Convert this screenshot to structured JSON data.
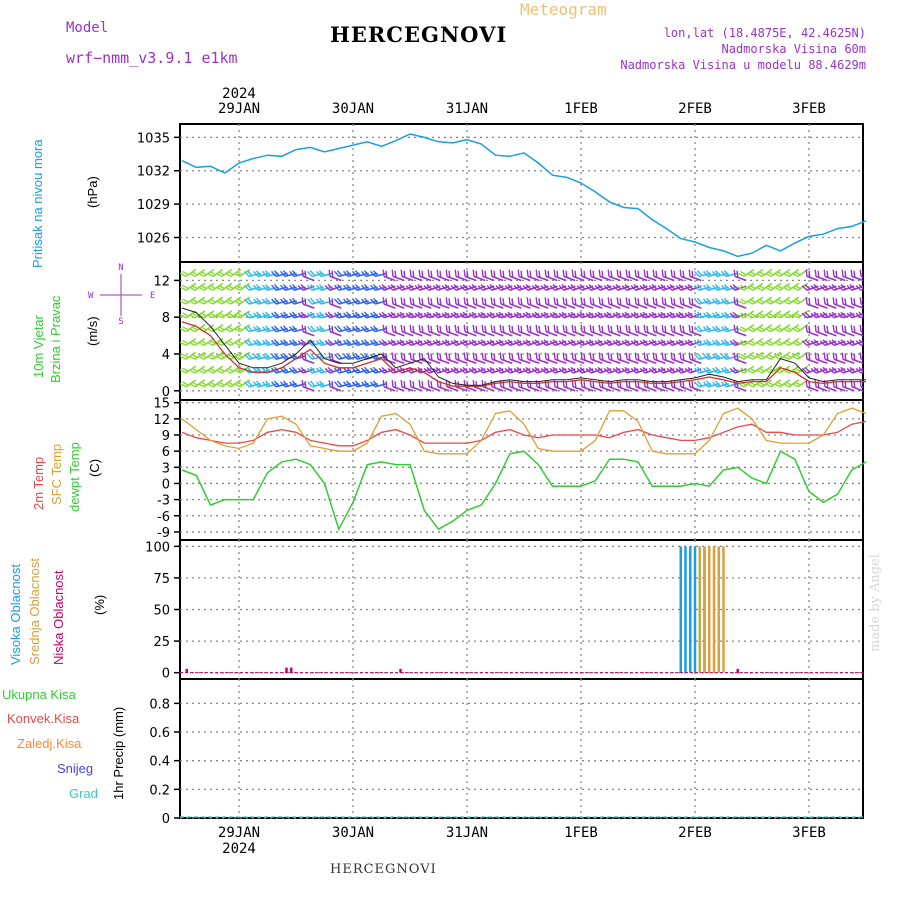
{
  "header": {
    "title": "HERCEGNOVI",
    "model_label": "Model",
    "model_value": "wrf−nmm_v3.9.1  e1km",
    "meteogram": "Meteogram",
    "lonlat": "lon,lat (18.4875E, 42.4625N)",
    "altitude": "Nadmorska Visina 60m",
    "model_altitude": "Nadmorska Visina u modelu 88.4629m"
  },
  "footer": "HERCEGNOVI",
  "credit": "made by Angel",
  "x_axis": {
    "year": "2024",
    "days": [
      "29JAN",
      "30JAN",
      "31JAN",
      "1FEB",
      "2FEB",
      "3FEB"
    ]
  },
  "compass": {
    "n": "N",
    "s": "S",
    "e": "E",
    "w": "W"
  },
  "colors": {
    "pressure": "#1a9fe0",
    "wind_speed": "#cc3333",
    "wind_gust": "#222222",
    "temp_2m": "#e84a4a",
    "temp_sfc": "#e0a030",
    "dewpoint": "#33cc33",
    "cloud_high": "#1a9fe0",
    "cloud_mid": "#d9a040",
    "cloud_low": "#cc0066",
    "precip_total": "#33cc33",
    "precip_conv": "#e84a4a",
    "precip_frozen": "#ff8833",
    "snow": "#4444dd",
    "graupel": "#33cccc"
  },
  "chart_data": [
    {
      "type": "line",
      "title": "",
      "ylabel": "Pritisak na nivou mora",
      "yunit": "(hPa)",
      "yticks": [
        1026,
        1029,
        1032,
        1035
      ],
      "ylim": [
        1023.8,
        1036.2
      ],
      "grid": true,
      "x": [
        "28JAN 12",
        "28JAN 15",
        "28JAN 18",
        "28JAN 21",
        "29JAN 00",
        "29JAN 03",
        "29JAN 06",
        "29JAN 09",
        "29JAN 12",
        "29JAN 15",
        "29JAN 18",
        "29JAN 21",
        "30JAN 00",
        "30JAN 03",
        "30JAN 06",
        "30JAN 09",
        "30JAN 12",
        "30JAN 15",
        "30JAN 18",
        "30JAN 21",
        "31JAN 00",
        "31JAN 03",
        "31JAN 06",
        "31JAN 09",
        "31JAN 12",
        "31JAN 15",
        "31JAN 18",
        "31JAN 21",
        "1FEB 00",
        "1FEB 03",
        "1FEB 06",
        "1FEB 09",
        "1FEB 12",
        "1FEB 15",
        "1FEB 18",
        "1FEB 21",
        "2FEB 00",
        "2FEB 03",
        "2FEB 06",
        "2FEB 09",
        "2FEB 12",
        "2FEB 15",
        "2FEB 18",
        "2FEB 21",
        "3FEB 00",
        "3FEB 03",
        "3FEB 06",
        "3FEB 09",
        "3FEB 12"
      ],
      "series": [
        {
          "name": "",
          "values": [
            1032.9,
            1032.3,
            1032.4,
            1031.8,
            1032.7,
            1033.1,
            1033.4,
            1033.3,
            1033.9,
            1034.1,
            1033.7,
            1034.0,
            1034.3,
            1034.6,
            1034.2,
            1034.7,
            1035.3,
            1035.0,
            1034.6,
            1034.5,
            1034.8,
            1034.4,
            1033.4,
            1033.3,
            1033.6,
            1032.7,
            1031.6,
            1031.4,
            1030.9,
            1030.1,
            1029.2,
            1028.7,
            1028.6,
            1027.6,
            1026.8,
            1025.9,
            1025.6,
            1025.1,
            1024.8,
            1024.3,
            1024.6,
            1025.3,
            1024.8,
            1025.5,
            1026.1,
            1026.3,
            1026.8,
            1027.0,
            1027.5
          ]
        }
      ]
    },
    {
      "type": "line",
      "title": "",
      "ylabel": "10m Vjetar Brzina i Pravac",
      "yunit": "(m/s)",
      "yticks": [
        0,
        4,
        8,
        12
      ],
      "ylim": [
        -1,
        14
      ],
      "grid": true,
      "x": [
        "28JAN 12",
        "28JAN 15",
        "28JAN 18",
        "28JAN 21",
        "29JAN 00",
        "29JAN 03",
        "29JAN 06",
        "29JAN 09",
        "29JAN 12",
        "29JAN 15",
        "29JAN 18",
        "29JAN 21",
        "30JAN 00",
        "30JAN 03",
        "30JAN 06",
        "30JAN 09",
        "30JAN 12",
        "30JAN 15",
        "30JAN 18",
        "30JAN 21",
        "31JAN 00",
        "31JAN 03",
        "31JAN 06",
        "31JAN 09",
        "31JAN 12",
        "31JAN 15",
        "31JAN 18",
        "31JAN 21",
        "1FEB 00",
        "1FEB 03",
        "1FEB 06",
        "1FEB 09",
        "1FEB 12",
        "1FEB 15",
        "1FEB 18",
        "1FEB 21",
        "2FEB 00",
        "2FEB 03",
        "2FEB 06",
        "2FEB 09",
        "2FEB 12",
        "2FEB 15",
        "2FEB 18",
        "2FEB 21",
        "3FEB 00",
        "3FEB 03",
        "3FEB 06",
        "3FEB 09",
        "3FEB 12"
      ],
      "series": [
        {
          "name": "",
          "values": [
            7.5,
            7.0,
            6.0,
            4.0,
            2.5,
            2.0,
            2.0,
            2.5,
            3.5,
            4.5,
            3.0,
            2.5,
            2.5,
            3.0,
            3.5,
            2.0,
            2.5,
            2.0,
            1.0,
            0.5,
            0.5,
            0.5,
            0.8,
            1.0,
            0.8,
            0.8,
            1.0,
            1.0,
            1.2,
            1.0,
            0.8,
            1.0,
            1.0,
            0.8,
            0.8,
            1.0,
            1.2,
            1.5,
            1.2,
            0.8,
            1.0,
            1.0,
            2.5,
            2.0,
            1.0,
            0.8,
            1.0,
            1.0,
            1.0
          ]
        },
        {
          "name": "",
          "values": [
            9.0,
            8.5,
            7.0,
            5.0,
            3.0,
            2.5,
            2.5,
            3.0,
            4.0,
            5.5,
            3.5,
            3.0,
            3.0,
            3.5,
            4.0,
            2.5,
            3.0,
            3.5,
            1.5,
            0.8,
            0.6,
            0.6,
            1.0,
            1.2,
            1.0,
            1.0,
            1.2,
            1.2,
            1.4,
            1.2,
            1.0,
            1.2,
            1.2,
            1.0,
            1.0,
            1.2,
            1.4,
            1.8,
            1.5,
            1.0,
            1.2,
            1.2,
            3.5,
            3.0,
            1.4,
            1.0,
            1.2,
            1.2,
            1.2
          ]
        }
      ]
    },
    {
      "type": "line",
      "title": "",
      "ylabel": "2m Temp / SFC Temp / dewpt Temp",
      "yunit": "(C)",
      "yticks": [
        -9,
        -6,
        -3,
        0,
        3,
        6,
        9,
        12,
        15
      ],
      "ylim": [
        -10.5,
        15.5
      ],
      "grid": true,
      "x": [
        "28JAN 12",
        "28JAN 15",
        "28JAN 18",
        "28JAN 21",
        "29JAN 00",
        "29JAN 03",
        "29JAN 06",
        "29JAN 09",
        "29JAN 12",
        "29JAN 15",
        "29JAN 18",
        "29JAN 21",
        "30JAN 00",
        "30JAN 03",
        "30JAN 06",
        "30JAN 09",
        "30JAN 12",
        "30JAN 15",
        "30JAN 18",
        "30JAN 21",
        "31JAN 00",
        "31JAN 03",
        "31JAN 06",
        "31JAN 09",
        "31JAN 12",
        "31JAN 15",
        "31JAN 18",
        "31JAN 21",
        "1FEB 00",
        "1FEB 03",
        "1FEB 06",
        "1FEB 09",
        "1FEB 12",
        "1FEB 15",
        "1FEB 18",
        "1FEB 21",
        "2FEB 00",
        "2FEB 03",
        "2FEB 06",
        "2FEB 09",
        "2FEB 12",
        "2FEB 15",
        "2FEB 18",
        "2FEB 21",
        "3FEB 00",
        "3FEB 03",
        "3FEB 06",
        "3FEB 09",
        "3FEB 12"
      ],
      "series": [
        {
          "name": "2m Temp",
          "values": [
            9.5,
            8.5,
            8.0,
            7.5,
            7.5,
            8.0,
            9.5,
            10.0,
            9.5,
            8.0,
            7.5,
            7.0,
            7.0,
            8.0,
            9.5,
            10.0,
            9.0,
            7.5,
            7.5,
            7.5,
            7.5,
            8.0,
            9.5,
            10.0,
            9.0,
            8.5,
            9.0,
            9.0,
            9.0,
            9.0,
            8.5,
            9.5,
            10.0,
            9.0,
            8.5,
            8.0,
            8.0,
            8.5,
            9.5,
            10.5,
            11.0,
            9.5,
            9.5,
            9.0,
            9.0,
            9.0,
            9.5,
            11.0,
            11.5
          ]
        },
        {
          "name": "SFC Temp",
          "values": [
            12.0,
            10.0,
            8.0,
            7.0,
            6.5,
            7.5,
            12.0,
            12.5,
            11.0,
            7.0,
            6.5,
            6.0,
            6.0,
            7.5,
            12.5,
            13.0,
            11.0,
            6.0,
            5.5,
            5.5,
            5.5,
            8.0,
            13.0,
            13.5,
            11.0,
            6.5,
            6.0,
            6.0,
            6.0,
            8.0,
            13.5,
            13.5,
            11.5,
            6.0,
            5.5,
            5.5,
            5.5,
            8.0,
            13.0,
            14.0,
            12.0,
            8.0,
            7.5,
            7.5,
            7.5,
            9.0,
            13.0,
            14.0,
            13.0
          ]
        },
        {
          "name": "dewpt Temp",
          "values": [
            2.5,
            1.5,
            -4.0,
            -3.0,
            -3.0,
            -3.0,
            2.0,
            4.0,
            4.5,
            3.5,
            0.0,
            -8.5,
            -3.5,
            3.5,
            4.0,
            3.5,
            3.5,
            -5.0,
            -8.5,
            -7.0,
            -5.0,
            -4.0,
            0.0,
            5.5,
            6.0,
            3.5,
            -0.5,
            -0.5,
            -0.5,
            0.5,
            4.5,
            4.5,
            4.0,
            -0.5,
            -0.5,
            -0.5,
            0.0,
            -0.5,
            2.5,
            3.0,
            1.0,
            0.0,
            6.0,
            4.5,
            -1.5,
            -3.5,
            -2.0,
            2.5,
            4.0
          ]
        }
      ]
    },
    {
      "type": "bar",
      "title": "",
      "ylabel": "Visoka Oblacnost / Srednja Oblacnost / Niska Oblacnost",
      "yunit": "(%)",
      "yticks": [
        0,
        25,
        50,
        75,
        100
      ],
      "ylim": [
        -5,
        105
      ],
      "grid": true,
      "series": [
        {
          "name": "Visoka Oblacnost",
          "x": [
            "1FEB 21",
            "1FEB 22",
            "1FEB 23",
            "2FEB 00",
            "2FEB 01",
            "2FEB 02"
          ],
          "values": [
            100,
            100,
            100,
            100,
            100,
            100
          ]
        },
        {
          "name": "Srednja Oblacnost",
          "x": [
            "2FEB 01",
            "2FEB 02",
            "2FEB 03",
            "2FEB 04",
            "2FEB 05",
            "2FEB 06"
          ],
          "values": [
            100,
            100,
            100,
            100,
            100,
            100
          ]
        },
        {
          "name": "Niska Oblacnost",
          "x": [
            "28JAN 13",
            "29JAN 10",
            "29JAN 11",
            "30JAN 10",
            "2FEB 09"
          ],
          "values": [
            3,
            4,
            4,
            3,
            3
          ]
        }
      ]
    },
    {
      "type": "bar",
      "title": "",
      "ylabel": "1hr Precip",
      "yunit": "(mm)",
      "yticks": [
        0,
        0.2,
        0.4,
        0.6,
        0.8
      ],
      "ylim": [
        0,
        0.97
      ],
      "grid": true,
      "legend": [
        "Ukupna Kisa",
        "Konvek.Kisa",
        "Zaledj.Kisa",
        "Snijeg",
        "Grad"
      ],
      "series": [
        {
          "name": "Ukupna Kisa",
          "values": [
            0
          ]
        },
        {
          "name": "Konvek.Kisa",
          "values": [
            0
          ]
        },
        {
          "name": "Zaledj.Kisa",
          "values": [
            0
          ]
        },
        {
          "name": "Snijeg",
          "values": [
            0
          ]
        },
        {
          "name": "Grad",
          "values": [
            0
          ]
        }
      ]
    }
  ]
}
